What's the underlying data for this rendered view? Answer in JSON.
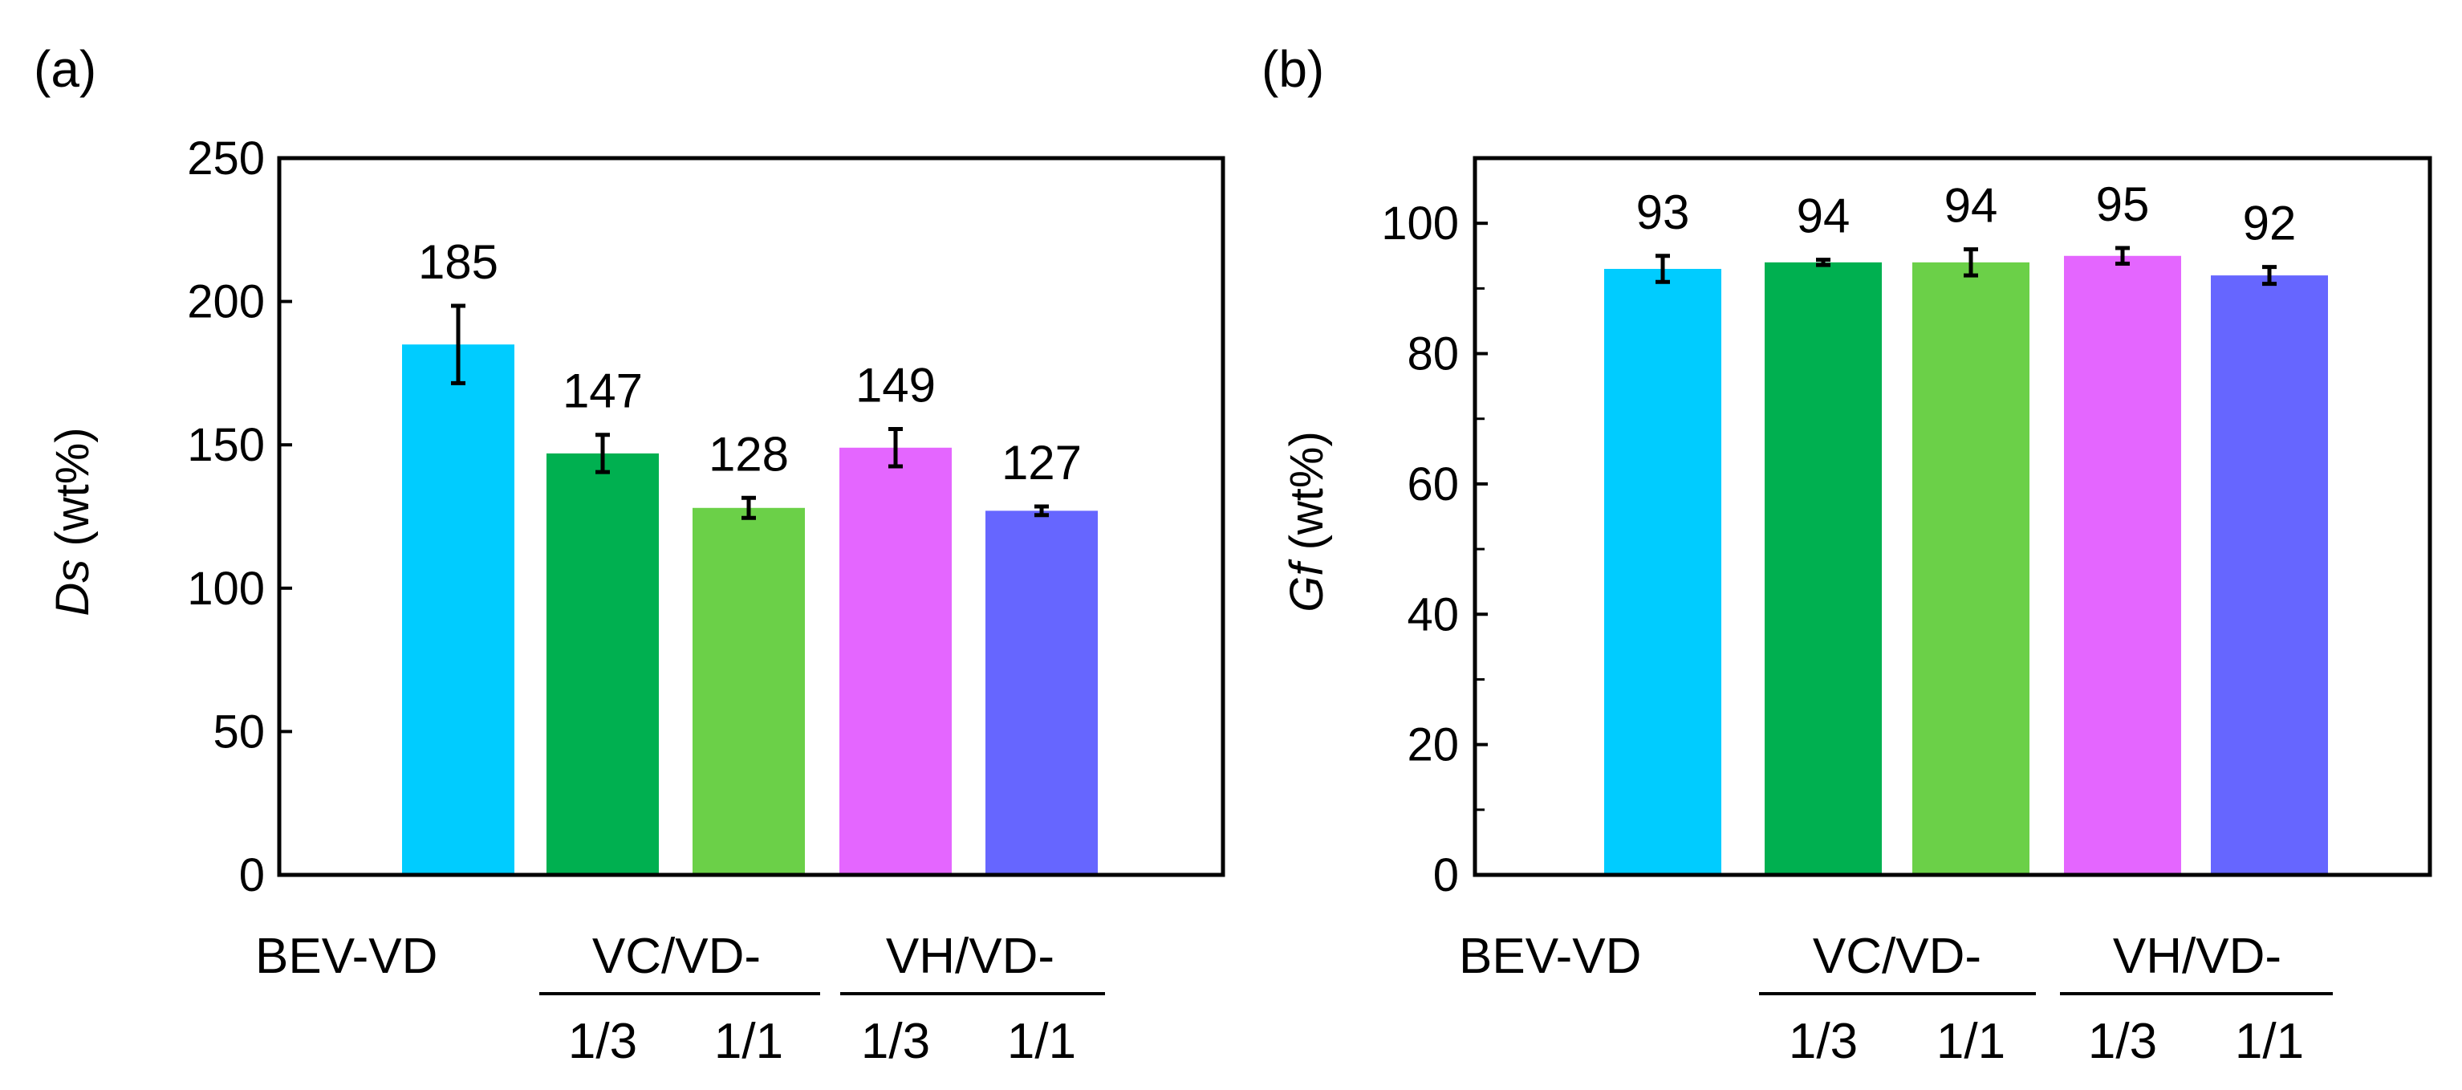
{
  "chart_data": [
    {
      "type": "bar",
      "panel_label": "(a)",
      "ylabel_symbol": "Ds",
      "ylabel_unit": " (wt%)",
      "ylim": [
        0,
        250
      ],
      "y_ticks": [
        "0",
        "50",
        "100",
        "150",
        "200",
        "250"
      ],
      "bars": [
        {
          "value": 185,
          "error": 13.5,
          "label": "185",
          "color": "#00CCFF"
        },
        {
          "value": 147,
          "error": 6.5,
          "label": "147",
          "color": "#00B050"
        },
        {
          "value": 128,
          "error": 3.5,
          "label": "128",
          "color": "#6BD048"
        },
        {
          "value": 149,
          "error": 6.5,
          "label": "149",
          "color": "#E466FF"
        },
        {
          "value": 127,
          "error": 1.5,
          "label": "127",
          "color": "#6666FF"
        }
      ],
      "category_labels": {
        "bev": "BEV-VD",
        "group1": "VC/VD-",
        "group2": "VH/VD-",
        "ratios": [
          "1/3",
          "1/1",
          "1/3",
          "1/1"
        ]
      }
    },
    {
      "type": "bar",
      "panel_label": "(b)",
      "ylabel_symbol": "Gf",
      "ylabel_unit": " (wt%)",
      "ylim": [
        0,
        110
      ],
      "y_ticks": [
        "0",
        "20",
        "40",
        "60",
        "80",
        "100"
      ],
      "bars": [
        {
          "value": 93,
          "error": 2.0,
          "label": "93",
          "color": "#00CCFF"
        },
        {
          "value": 94,
          "error": 0.4,
          "label": "94",
          "color": "#00B050"
        },
        {
          "value": 94,
          "error": 2.0,
          "label": "94",
          "color": "#6BD048"
        },
        {
          "value": 95,
          "error": 1.2,
          "label": "95",
          "color": "#E466FF"
        },
        {
          "value": 92,
          "error": 1.3,
          "label": "92",
          "color": "#6666FF"
        }
      ],
      "category_labels": {
        "bev": "BEV-VD",
        "group1": "VC/VD-",
        "group2": "VH/VD-",
        "ratios": [
          "1/3",
          "1/1",
          "1/3",
          "1/1"
        ]
      }
    }
  ]
}
